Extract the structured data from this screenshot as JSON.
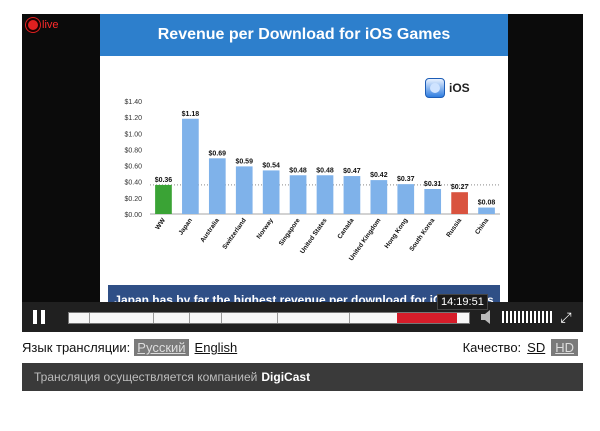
{
  "live_label": "live",
  "slide": {
    "title": "Revenue per Download for iOS Games",
    "badge": "iOS",
    "footer": "Japan has by far the highest revenue per download for iOS Games"
  },
  "chart_data": {
    "type": "bar",
    "title": "Revenue per Download for iOS Games",
    "categories": [
      "WW",
      "Japan",
      "Australia",
      "Switzerland",
      "Norway",
      "Singapore",
      "United States",
      "Canada",
      "United Kingdom",
      "Hong Kong",
      "South Korea",
      "Russia",
      "China"
    ],
    "values": [
      0.36,
      1.18,
      0.69,
      0.59,
      0.54,
      0.48,
      0.48,
      0.47,
      0.42,
      0.37,
      0.31,
      0.27,
      0.08
    ],
    "value_labels": [
      "$0.36",
      "$1.18",
      "$0.69",
      "$0.59",
      "$0.54",
      "$0.48",
      "$0.48",
      "$0.47",
      "$0.42",
      "$0.37",
      "$0.31",
      "$0.27",
      "$0.08"
    ],
    "yticks": [
      "$0.00",
      "$0.20",
      "$0.40",
      "$0.60",
      "$0.80",
      "$1.00",
      "$1.20",
      "$1.40"
    ],
    "ylim": [
      0,
      1.4
    ],
    "reference_line": 0.36,
    "colors": {
      "WW": "#3aa335",
      "Russia": "#d9533f",
      "default": "#7fb2ea"
    }
  },
  "player": {
    "time": "14:19:51",
    "progress": 0.97,
    "buffer_start": 0.82
  },
  "language": {
    "label": "Язык трансляции:",
    "options": [
      "Русский",
      "English"
    ],
    "selected": "Русский"
  },
  "quality": {
    "label": "Качество:",
    "options": [
      "SD",
      "HD"
    ],
    "selected": "HD"
  },
  "provider": {
    "text": "Трансляция осуществляется компанией",
    "name": "DigiCast"
  }
}
